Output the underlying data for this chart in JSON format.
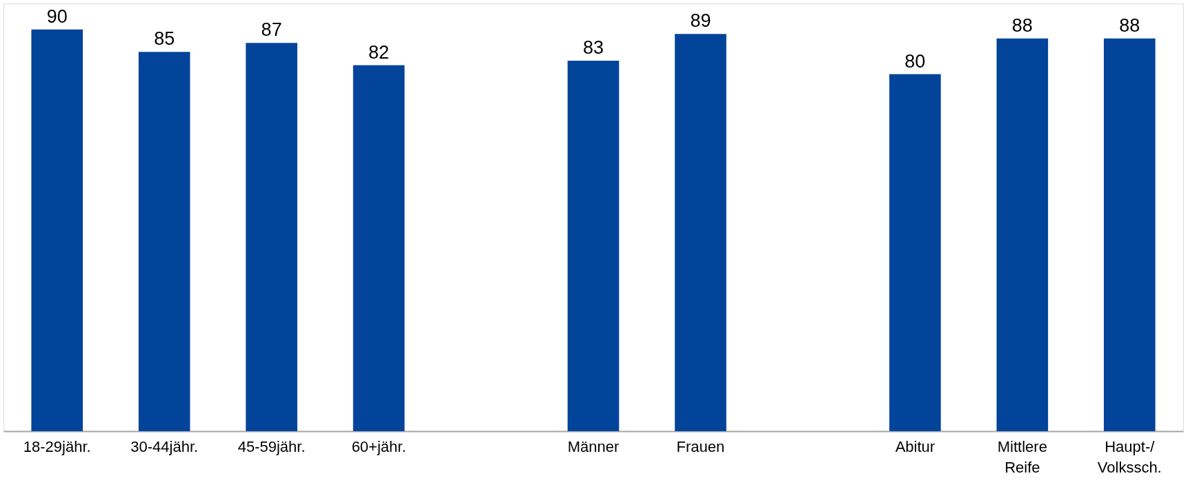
{
  "chart_data": {
    "type": "bar",
    "categories": [
      "18-29jähr.",
      "30-44jähr.",
      "45-59jähr.",
      "60+jähr.",
      null,
      "Männer",
      "Frauen",
      null,
      "Abitur",
      "Mittlere Reife",
      "Haupt-/ Volkssch."
    ],
    "values": [
      90,
      85,
      87,
      82,
      null,
      83,
      89,
      null,
      80,
      88,
      88
    ],
    "color": "#02449a",
    "data_labels": true
  }
}
